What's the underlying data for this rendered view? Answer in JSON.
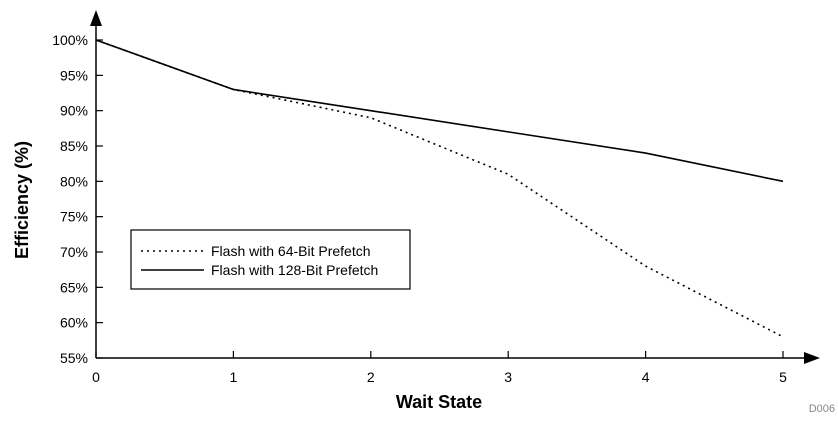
{
  "chart_data": {
    "type": "line",
    "title": "",
    "xlabel": "Wait State",
    "ylabel": "Efficiency (%)",
    "x": [
      0,
      1,
      2,
      3,
      4,
      5
    ],
    "xticks": [
      "0",
      "1",
      "2",
      "3",
      "4",
      "5"
    ],
    "yticks": [
      "55%",
      "60%",
      "65%",
      "70%",
      "75%",
      "80%",
      "85%",
      "90%",
      "95%",
      "100%"
    ],
    "xlim": [
      0,
      5
    ],
    "ylim": [
      55,
      100
    ],
    "grid": false,
    "legend_position": "middle-left",
    "series": [
      {
        "name": "Flash with 64-Bit Prefetch",
        "style": "dotted",
        "values": [
          100,
          93,
          89,
          81,
          68,
          58
        ]
      },
      {
        "name": "Flash with 128-Bit Prefetch",
        "style": "solid",
        "values": [
          100,
          93,
          90,
          87,
          84,
          80
        ]
      }
    ],
    "figure_id": "D006"
  }
}
